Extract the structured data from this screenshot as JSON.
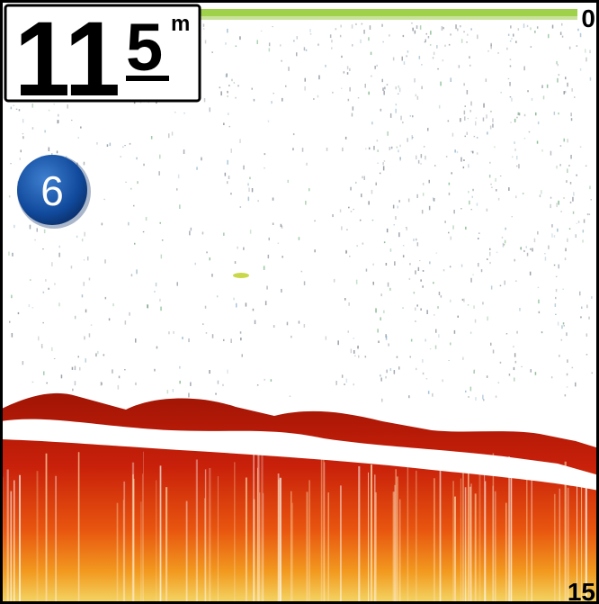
{
  "depth_display": {
    "whole": "11",
    "tenth": "5",
    "unit": "m"
  },
  "callout": "6",
  "depth_scale": {
    "top": "0",
    "bottom": "15"
  }
}
